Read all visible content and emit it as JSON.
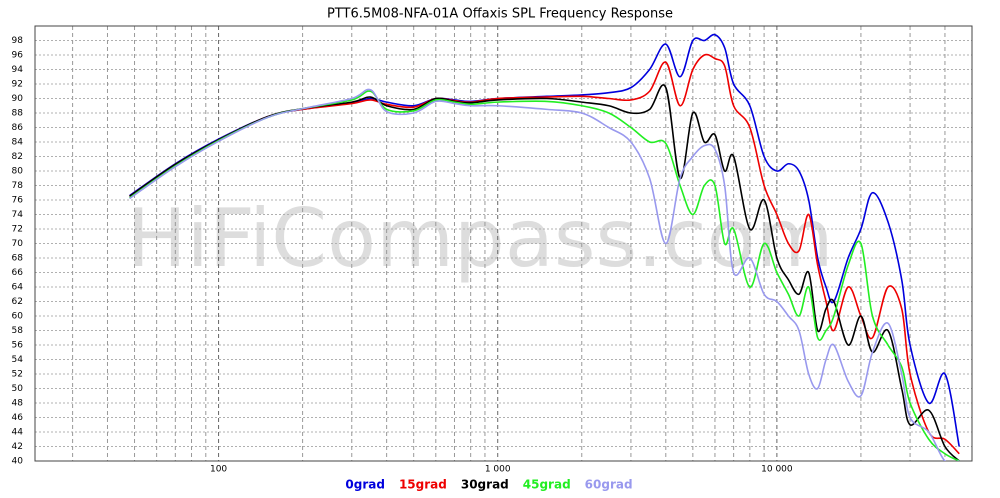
{
  "chart_data": {
    "type": "line",
    "title": "PTT6.5M08-NFA-01A Offaxis SPL Frequency Response",
    "watermark": "HiFiCompass.com",
    "log_x": true,
    "grid": true,
    "legend": "bottom",
    "xlim": [
      22,
      50000
    ],
    "xticks": [
      100,
      {
        "value": 1000,
        "label": "1 000"
      },
      {
        "value": 10000,
        "label": "10 000"
      }
    ],
    "x_minor_ticks": [
      30,
      40,
      50,
      60,
      70,
      80,
      90,
      200,
      300,
      400,
      500,
      600,
      700,
      800,
      900,
      2000,
      3000,
      4000,
      5000,
      6000,
      7000,
      8000,
      9000,
      20000,
      30000,
      40000
    ],
    "ylim": [
      40,
      100
    ],
    "yticks": [
      40,
      42,
      44,
      46,
      48,
      50,
      52,
      54,
      56,
      58,
      60,
      62,
      64,
      66,
      68,
      70,
      72,
      74,
      76,
      78,
      80,
      82,
      84,
      86,
      88,
      90,
      92,
      94,
      96,
      98
    ],
    "x": [
      48,
      70,
      100,
      150,
      200,
      300,
      350,
      400,
      500,
      600,
      700,
      800,
      1000,
      1500,
      2000,
      2500,
      3000,
      3500,
      4000,
      4500,
      5000,
      5500,
      6000,
      6500,
      7000,
      8000,
      9000,
      10000,
      11000,
      12000,
      13000,
      14000,
      15000,
      16000,
      18000,
      20000,
      22000,
      25000,
      28000,
      30000,
      35000,
      40000,
      45000
    ],
    "series": [
      {
        "name": "0grad",
        "color": "#0000dd",
        "values": [
          76.6,
          81,
          84.4,
          87.5,
          88.5,
          89.4,
          90,
          89.5,
          89,
          90,
          89.8,
          89.6,
          90,
          90.3,
          90.5,
          90.8,
          91.5,
          94,
          97.5,
          93,
          98,
          98,
          98.8,
          97,
          92,
          89,
          82,
          80,
          81,
          80,
          76,
          68,
          64,
          62,
          68,
          72,
          77,
          73,
          65,
          56,
          48,
          52,
          42
        ]
      },
      {
        "name": "15grad",
        "color": "#ee0000",
        "values": [
          76.5,
          80.9,
          84.3,
          87.5,
          88.5,
          89.3,
          89.8,
          89.2,
          88.8,
          90,
          89.7,
          89.5,
          90,
          90.2,
          90.3,
          90,
          89.8,
          91,
          95,
          89,
          94,
          96,
          95.5,
          94.5,
          89,
          86,
          78,
          74,
          70,
          69,
          74,
          67,
          62,
          58,
          64,
          60,
          57,
          64,
          61,
          52,
          44,
          43,
          41
        ]
      },
      {
        "name": "30grad",
        "color": "#000000",
        "values": [
          76.5,
          80.9,
          84.3,
          87.5,
          88.6,
          89.5,
          90.2,
          89,
          88.5,
          90,
          89.6,
          89.4,
          89.8,
          90,
          89.5,
          89,
          88,
          88.5,
          91.5,
          79,
          88,
          84,
          85,
          80,
          82,
          72,
          76,
          68,
          65,
          63,
          66,
          58,
          61,
          62,
          56,
          60,
          55,
          58,
          50,
          45,
          47,
          42,
          40
        ]
      },
      {
        "name": "45grad",
        "color": "#22ee22",
        "values": [
          76.3,
          80.7,
          84.2,
          87.4,
          88.6,
          89.8,
          91,
          88.5,
          88.3,
          89.8,
          89.5,
          89.2,
          89.5,
          89.6,
          89,
          88,
          86,
          84,
          83.8,
          78,
          74,
          78,
          78,
          70,
          72,
          64,
          70,
          66,
          63,
          60,
          64,
          57,
          58,
          60,
          67,
          70,
          60,
          56,
          53,
          48,
          43,
          41,
          40
        ]
      },
      {
        "name": "60grad",
        "color": "#9999ee",
        "values": [
          76.2,
          80.6,
          84.1,
          87.4,
          88.6,
          90,
          91.2,
          88.2,
          88,
          89.6,
          89.3,
          89,
          89,
          88.5,
          88,
          86,
          84,
          79,
          70,
          79,
          82,
          83.5,
          83,
          78,
          66,
          68,
          63,
          62,
          60,
          58,
          52,
          50,
          54,
          56,
          51,
          49,
          55,
          59,
          52,
          46,
          44,
          40,
          40
        ]
      }
    ]
  }
}
